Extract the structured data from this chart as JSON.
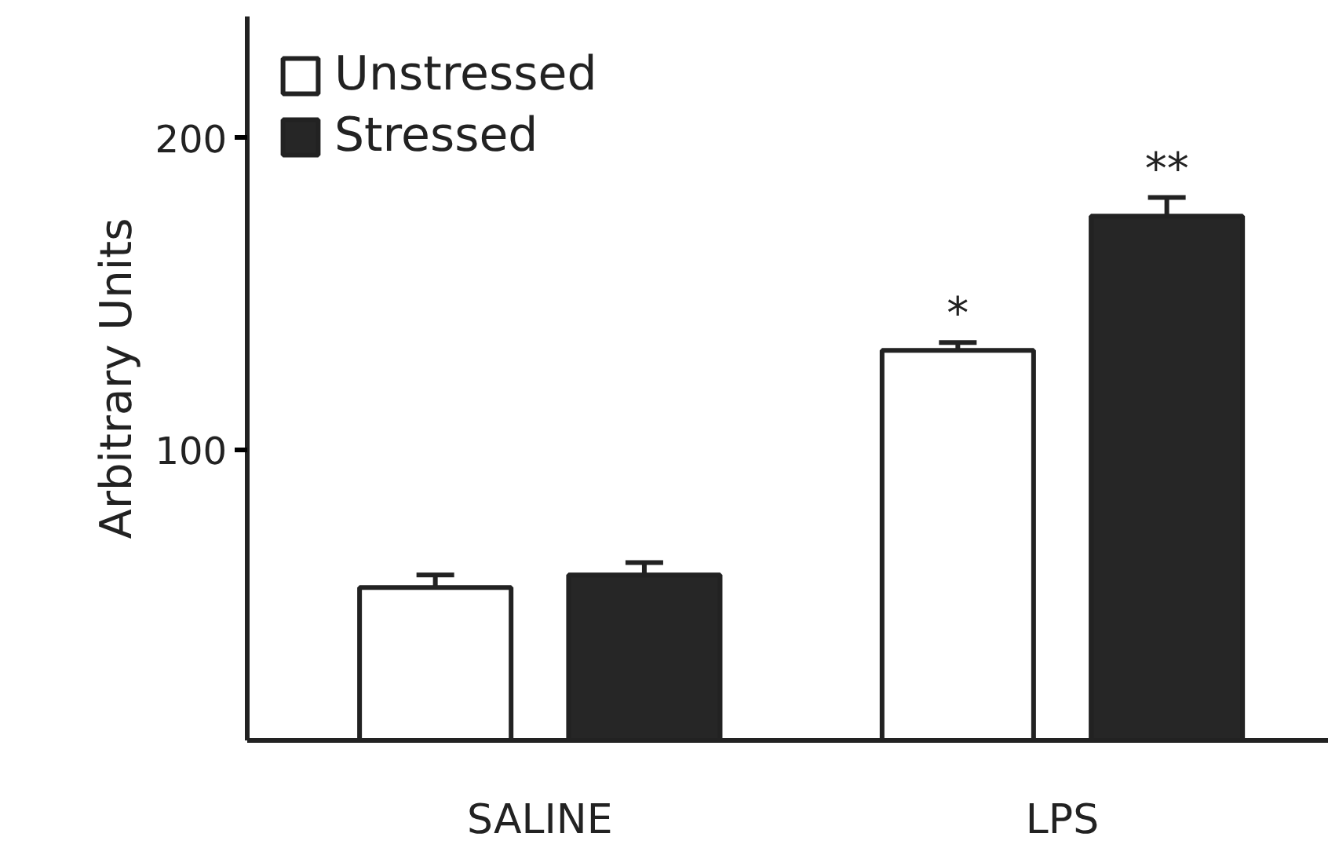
{
  "chart_data": {
    "type": "bar",
    "ylabel": "Arbitrary Units",
    "categories": [
      "SALINE",
      "LPS"
    ],
    "series": [
      {
        "name": "Unstressed",
        "color": "#ffffff",
        "values": [
          56,
          132
        ],
        "errors": [
          4,
          2.5
        ]
      },
      {
        "name": "Stressed",
        "color": "#262626",
        "values": [
          60,
          175
        ],
        "errors": [
          4,
          6
        ]
      }
    ],
    "ylim": [
      7,
      239
    ],
    "yticks": [
      100,
      200
    ],
    "grid": false,
    "legend": "top left",
    "annotations": [
      "*",
      "**"
    ]
  }
}
